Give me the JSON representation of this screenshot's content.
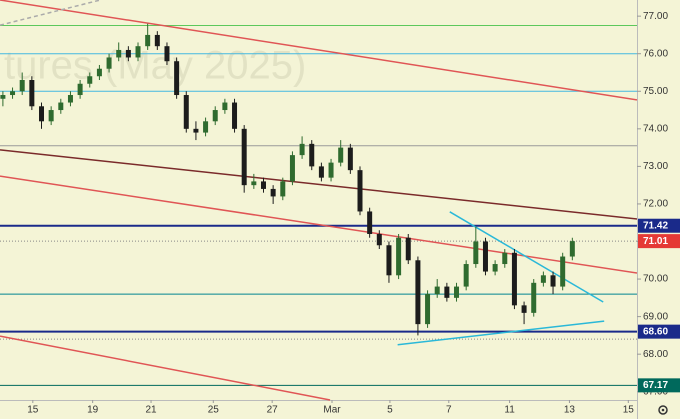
{
  "chart_data": {
    "type": "candlestick",
    "watermark": "tures (May 2025)",
    "xlim": [
      -0.3,
      65.7
    ],
    "ylim": [
      66.78,
      77.43
    ],
    "xticks": [
      {
        "value": 3.1,
        "label": "15"
      },
      {
        "value": 9.3,
        "label": "19"
      },
      {
        "value": 15.35,
        "label": "21"
      },
      {
        "value": 21.8,
        "label": "25"
      },
      {
        "value": 27.9,
        "label": "27"
      },
      {
        "value": 34.1,
        "label": "Mar"
      },
      {
        "value": 40.1,
        "label": "5"
      },
      {
        "value": 46.2,
        "label": "7"
      },
      {
        "value": 52.5,
        "label": "11"
      },
      {
        "value": 58.7,
        "label": "13"
      },
      {
        "value": 64.8,
        "label": "15"
      }
    ],
    "yticks": [
      {
        "value": 67,
        "label": "67.00"
      },
      {
        "value": 68,
        "label": "68.00"
      },
      {
        "value": 69,
        "label": "69.00"
      },
      {
        "value": 70,
        "label": "70.00"
      },
      {
        "value": 71,
        "label": "71.00"
      },
      {
        "value": 72,
        "label": "72.00"
      },
      {
        "value": 73,
        "label": "73.00"
      },
      {
        "value": 74,
        "label": "74.00"
      },
      {
        "value": 75,
        "label": "75.00"
      },
      {
        "value": 76,
        "label": "76.00"
      },
      {
        "value": 77,
        "label": "77.00"
      }
    ],
    "up_color": "#2f6b2f",
    "down_color": "#1c1c1c",
    "open": [
      74.8,
      74.9,
      75.0,
      75.3,
      74.6,
      74.2,
      74.5,
      74.7,
      74.9,
      75.2,
      75.4,
      75.6,
      75.9,
      76.1,
      75.9,
      76.2,
      76.5,
      76.2,
      75.8,
      74.9,
      74.0,
      73.9,
      74.2,
      74.5,
      74.7,
      74.0,
      72.5,
      72.6,
      72.4,
      72.2,
      72.6,
      73.3,
      73.6,
      73.0,
      72.7,
      73.1,
      73.5,
      72.9,
      71.8,
      71.2,
      70.9,
      70.1,
      71.1,
      70.5,
      68.8,
      69.6,
      69.8,
      69.5,
      69.8,
      70.4,
      71.0,
      70.2,
      70.4,
      70.7,
      69.3,
      69.1,
      69.9,
      70.1,
      69.8,
      70.6
    ],
    "high": [
      75.0,
      75.1,
      75.5,
      75.4,
      74.7,
      74.6,
      74.8,
      75.0,
      75.3,
      75.5,
      75.7,
      76.0,
      76.3,
      76.2,
      76.3,
      76.8,
      76.6,
      76.3,
      75.9,
      75.0,
      74.2,
      74.3,
      74.6,
      74.8,
      74.8,
      74.1,
      72.8,
      72.7,
      72.5,
      72.7,
      73.4,
      73.8,
      73.7,
      73.1,
      73.2,
      73.7,
      73.6,
      73.0,
      71.9,
      71.3,
      71.0,
      71.2,
      71.2,
      70.6,
      69.7,
      70.0,
      69.9,
      69.9,
      70.5,
      71.4,
      71.1,
      70.5,
      70.8,
      70.8,
      69.4,
      70.0,
      70.2,
      70.2,
      70.7,
      71.1
    ],
    "low": [
      74.6,
      74.8,
      74.9,
      74.5,
      74.0,
      74.1,
      74.4,
      74.6,
      74.8,
      75.1,
      75.3,
      75.5,
      75.8,
      75.8,
      75.8,
      76.1,
      76.1,
      75.7,
      74.8,
      73.9,
      73.7,
      73.8,
      74.1,
      74.4,
      73.9,
      72.3,
      72.4,
      72.3,
      72.0,
      72.1,
      72.5,
      73.2,
      72.9,
      72.6,
      72.6,
      73.0,
      72.8,
      71.7,
      71.1,
      70.8,
      69.9,
      70.0,
      70.4,
      68.5,
      68.7,
      69.5,
      69.4,
      69.4,
      69.7,
      70.3,
      70.1,
      70.1,
      70.3,
      69.2,
      68.8,
      69.0,
      69.8,
      69.6,
      69.7,
      70.5
    ],
    "close": [
      74.9,
      75.0,
      75.3,
      74.6,
      74.2,
      74.5,
      74.7,
      74.9,
      75.2,
      75.4,
      75.6,
      75.9,
      76.1,
      75.9,
      76.2,
      76.5,
      76.2,
      75.8,
      74.9,
      74.0,
      73.9,
      74.2,
      74.5,
      74.7,
      74.0,
      72.5,
      72.6,
      72.4,
      72.2,
      72.6,
      73.3,
      73.6,
      73.0,
      72.7,
      73.1,
      73.5,
      72.9,
      71.8,
      71.2,
      70.9,
      70.1,
      71.1,
      70.5,
      68.8,
      69.6,
      69.8,
      69.5,
      69.8,
      70.4,
      71.0,
      70.2,
      70.4,
      70.7,
      69.3,
      69.1,
      69.9,
      70.1,
      69.8,
      70.6,
      71.01
    ],
    "levels": [
      {
        "value": 76.75,
        "color": "#5cc85c",
        "width": 1
      },
      {
        "value": 76.0,
        "color": "#45b8e0",
        "width": 1
      },
      {
        "value": 75.0,
        "color": "#45b8e0",
        "width": 1
      },
      {
        "value": 73.55,
        "color": "#9a9a9a",
        "width": 1
      },
      {
        "value": 71.42,
        "color": "#1a2a8a",
        "width": 2
      },
      {
        "value": 71.01,
        "color": "#888888",
        "width": 1,
        "dotted": true,
        "label_color": "#e53935"
      },
      {
        "value": 69.6,
        "color": "#00838f",
        "width": 1
      },
      {
        "value": 68.6,
        "label": "68.60",
        "color": "#1a2a8a",
        "width": 2
      },
      {
        "value": 68.4,
        "color": "#888888",
        "width": 1,
        "dotted": true
      },
      {
        "value": 67.17,
        "color": "#00695c",
        "width": 1
      }
    ],
    "labelled_levels": [
      4,
      5,
      7,
      9
    ],
    "trend_lines": [
      {
        "x": [
          -0.3,
          65.7
        ],
        "y": [
          77.43,
          74.77
        ],
        "color": "#e05555"
      },
      {
        "x": [
          -0.3,
          65.7
        ],
        "y": [
          73.44,
          71.6
        ],
        "color": "#7a2a2a"
      },
      {
        "x": [
          -0.3,
          65.7
        ],
        "y": [
          72.74,
          70.16
        ],
        "color": "#e05555"
      },
      {
        "x": [
          -0.3,
          33.9
        ],
        "y": [
          68.48,
          66.78
        ],
        "color": "#e05555"
      },
      {
        "x": [
          -0.3,
          10.1
        ],
        "y": [
          76.76,
          77.43
        ],
        "color": "#aaaaaa",
        "dashed": true
      },
      {
        "x": [
          46.3,
          62.2
        ],
        "y": [
          71.79,
          69.39
        ],
        "color": "#2ab8d8"
      },
      {
        "x": [
          40.9,
          62.3
        ],
        "y": [
          68.25,
          68.88
        ],
        "color": "#2ab8d8"
      }
    ]
  }
}
